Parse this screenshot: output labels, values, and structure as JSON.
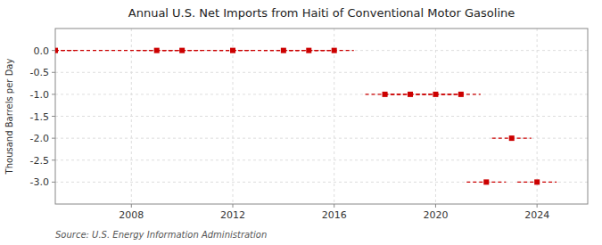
{
  "chart_data": {
    "type": "scatter",
    "title": "Annual U.S. Net Imports from Haiti of Conventional Motor Gasoline",
    "y_label": "Thousand Barrels per Day",
    "source": "Source: U.S. Energy Information Administration",
    "x": [
      2005,
      2009,
      2010,
      2012,
      2014,
      2015,
      2016,
      2018,
      2019,
      2020,
      2021,
      2023,
      2022,
      2024
    ],
    "values": [
      0.0,
      0.0,
      0.0,
      0.0,
      0.0,
      0.0,
      0.0,
      -1.0,
      -1.0,
      -1.0,
      -1.0,
      -2.0,
      -3.0,
      -3.0
    ],
    "color": "#cc0000",
    "marker": "square",
    "line_style": "dashed",
    "xlim": [
      2005.0,
      2026.0
    ],
    "xticks": [
      2008,
      2012,
      2016,
      2020,
      2024
    ],
    "ylim": [
      -3.5,
      0.5
    ],
    "yticks": [
      {
        "value": 0.0,
        "label": "0.0"
      },
      -0.5,
      {
        "value": -1.0,
        "label": "-1.0"
      },
      -1.5,
      {
        "value": -2.0,
        "label": "-2.0"
      },
      -2.5,
      {
        "value": -3.0,
        "label": "-3.0"
      }
    ],
    "grid": true
  }
}
